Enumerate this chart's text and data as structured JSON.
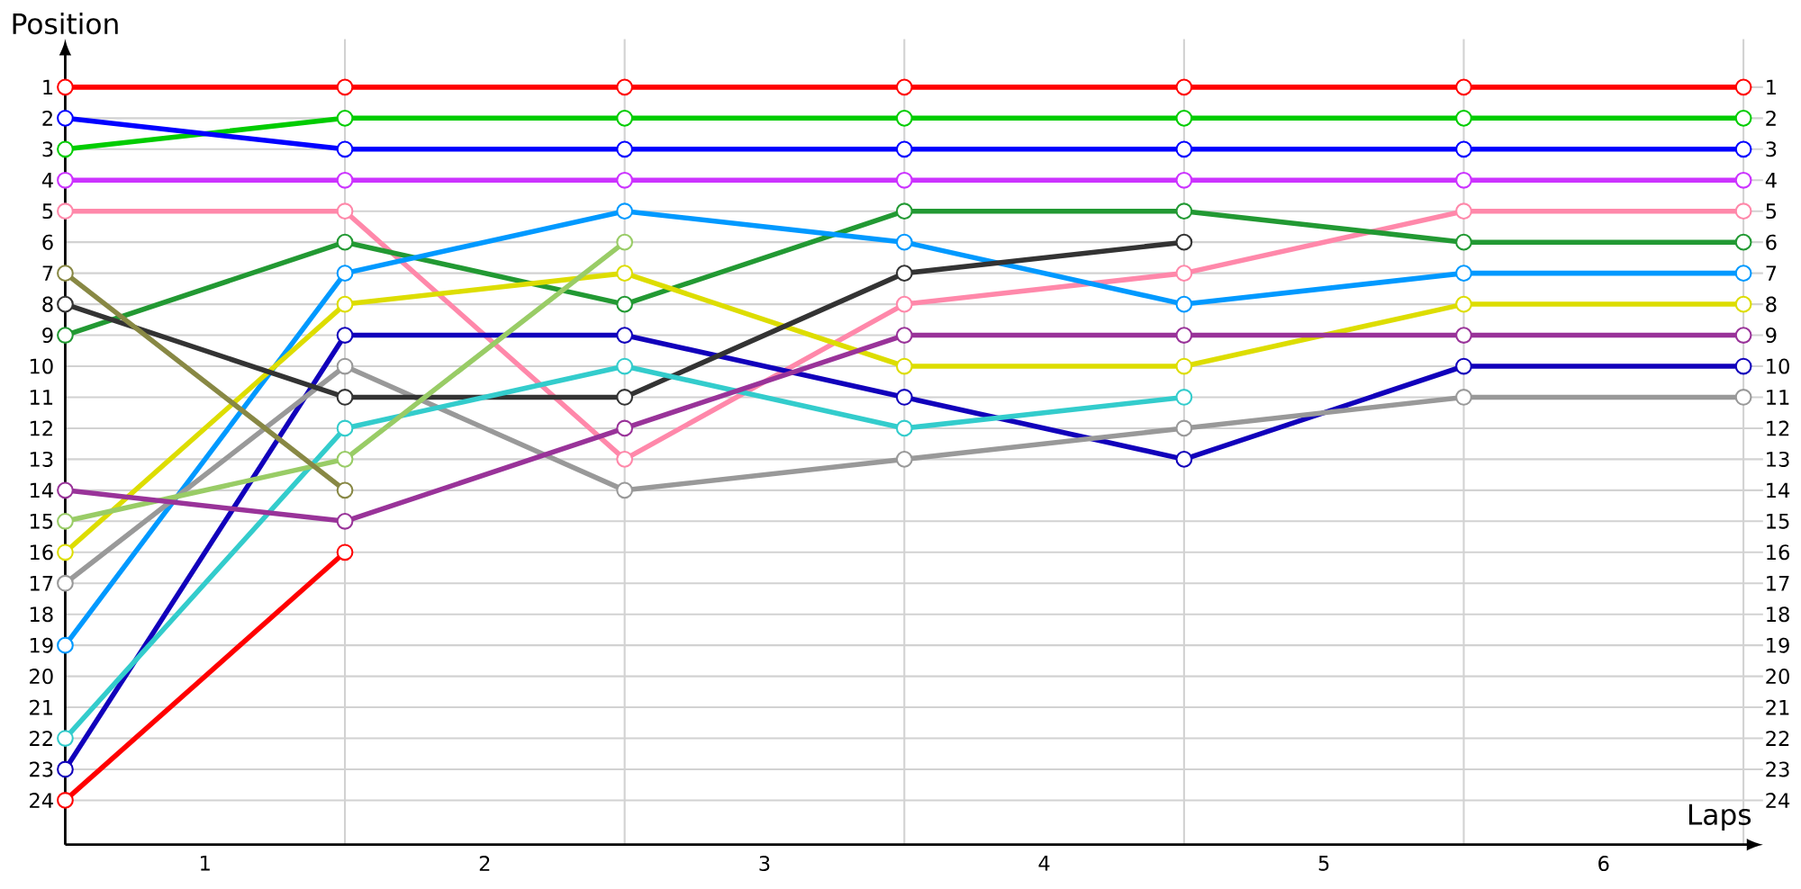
{
  "chart_data": {
    "type": "line",
    "xlabel": "Laps",
    "ylabel": "Position",
    "x": [
      0,
      1,
      2,
      3,
      4,
      5,
      6
    ],
    "xlim": [
      0,
      6.07
    ],
    "xticks": [
      {
        "value": 0,
        "label": null
      },
      {
        "value": 0.5,
        "label": "1"
      },
      {
        "value": 1,
        "label": null
      },
      {
        "value": 1.5,
        "label": "2"
      },
      {
        "value": 2,
        "label": null
      },
      {
        "value": 2.5,
        "label": "3"
      },
      {
        "value": 3,
        "label": null
      },
      {
        "value": 3.5,
        "label": "4"
      },
      {
        "value": 4,
        "label": null
      },
      {
        "value": 4.5,
        "label": "5"
      },
      {
        "value": 5,
        "label": null
      },
      {
        "value": 5.5,
        "label": "6"
      },
      {
        "value": 6,
        "label": null
      }
    ],
    "ylim": [
      25.43,
      -0.55
    ],
    "yticks": [
      1,
      2,
      3,
      4,
      5,
      6,
      7,
      8,
      9,
      10,
      11,
      12,
      13,
      14,
      15,
      16,
      17,
      18,
      19,
      20,
      21,
      22,
      23,
      24
    ],
    "y2lim": [
      25.43,
      -0.55
    ],
    "y2ticks": [
      1,
      2,
      3,
      4,
      5,
      6,
      7,
      8,
      9,
      10,
      11,
      12,
      13,
      14,
      15,
      16,
      17,
      18,
      19,
      20,
      21,
      22,
      23,
      24
    ],
    "grid": true,
    "marker": "circle",
    "line_style": "solid",
    "series": [
      {
        "color": "#ff0000",
        "values": [
          1,
          1,
          1,
          1,
          1,
          1,
          1
        ]
      },
      {
        "color": "#00cc00",
        "values": [
          3,
          2,
          2,
          2,
          2,
          2,
          2
        ]
      },
      {
        "color": "#0000ff",
        "values": [
          2,
          3,
          3,
          3,
          3,
          3,
          3
        ]
      },
      {
        "color": "#cc33ff",
        "values": [
          4,
          4,
          4,
          4,
          4,
          4,
          4
        ]
      },
      {
        "color": "#ff88aa",
        "values": [
          5,
          5,
          13,
          8,
          7,
          5,
          5
        ]
      },
      {
        "color": "#229933",
        "values": [
          9,
          6,
          8,
          5,
          5,
          6,
          6
        ]
      },
      {
        "color": "#0099ff",
        "values": [
          19,
          7,
          5,
          6,
          8,
          7,
          7
        ]
      },
      {
        "color": "#dddd00",
        "values": [
          16,
          8,
          7,
          10,
          10,
          8,
          8
        ]
      },
      {
        "color": "#1100bb",
        "values": [
          23,
          9,
          9,
          11,
          13,
          10,
          10
        ]
      },
      {
        "color": "#999999",
        "values": [
          17,
          10,
          14,
          13,
          12,
          11,
          11
        ]
      },
      {
        "color": "#333333",
        "values": [
          8,
          11,
          11,
          7,
          6,
          null,
          null
        ]
      },
      {
        "color": "#33cccc",
        "values": [
          22,
          12,
          10,
          12,
          11,
          null,
          null
        ]
      },
      {
        "color": "#99cc66",
        "values": [
          15,
          13,
          6,
          null,
          null,
          null,
          null
        ]
      },
      {
        "color": "#888844",
        "values": [
          7,
          14,
          null,
          null,
          null,
          null,
          null
        ]
      },
      {
        "color": "#993399",
        "values": [
          14,
          15,
          12,
          9,
          9,
          9,
          9
        ]
      },
      {
        "color": "#ff0000",
        "values": [
          24,
          16,
          null,
          null,
          null,
          null,
          null
        ]
      }
    ]
  }
}
